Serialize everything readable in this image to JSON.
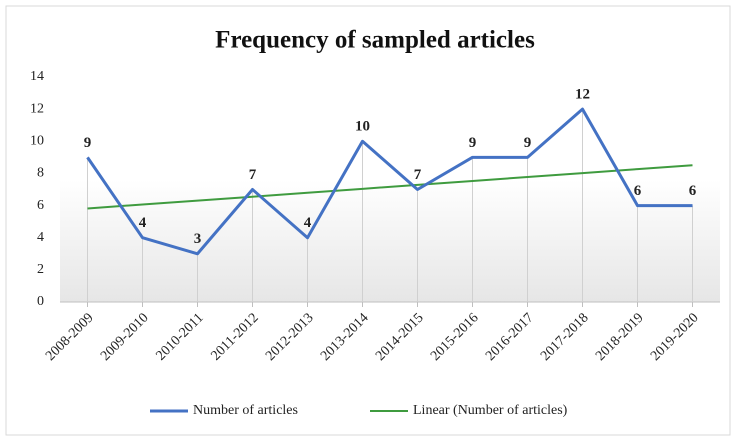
{
  "chart_data": {
    "type": "line",
    "title": "Frequency of sampled articles",
    "categories": [
      "2008-2009",
      "2009-2010",
      "2010-2011",
      "2011-2012",
      "2012-2013",
      "2013-2014",
      "2014-2015",
      "2015-2016",
      "2016-2017",
      "2017-2018",
      "2018-2019",
      "2019-2020"
    ],
    "series": [
      {
        "name": "Number of articles",
        "color": "#4472c4",
        "values": [
          9,
          4,
          3,
          7,
          4,
          10,
          7,
          9,
          9,
          12,
          6,
          6
        ],
        "data_labels": true
      },
      {
        "name": "Linear (Number of articles)",
        "color": "#3f9b3f",
        "values": [
          5.82,
          6.07,
          6.31,
          6.55,
          6.8,
          7.04,
          7.29,
          7.53,
          7.78,
          8.02,
          8.27,
          8.51
        ],
        "data_labels": false
      }
    ],
    "ylim": [
      0,
      14
    ],
    "yticks": [
      0,
      2,
      4,
      6,
      8,
      10,
      12,
      14
    ],
    "legend": "bottom"
  }
}
